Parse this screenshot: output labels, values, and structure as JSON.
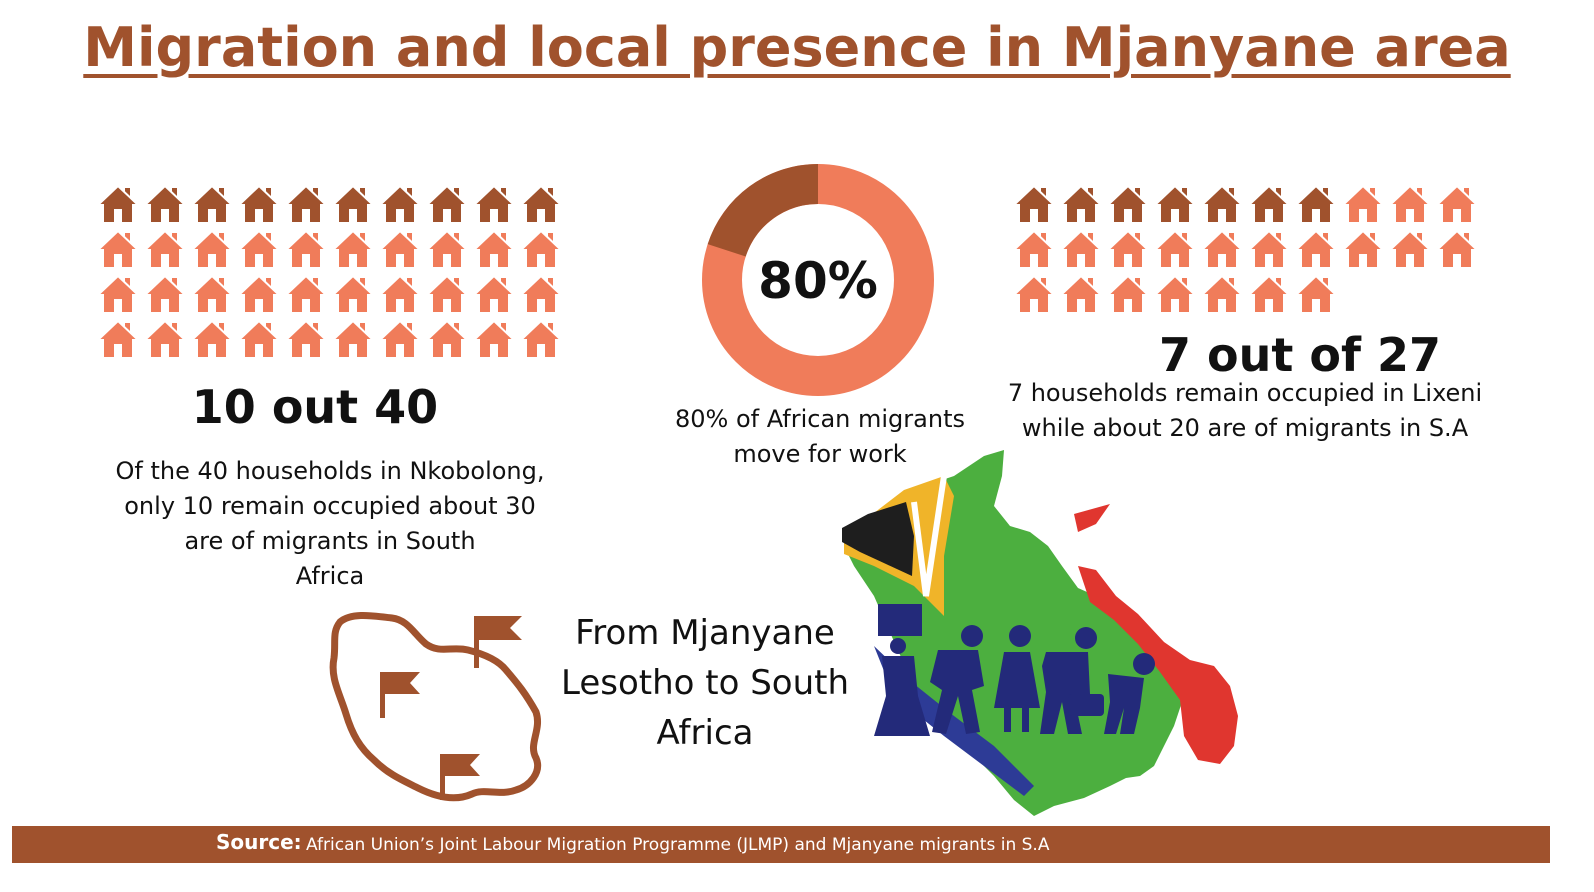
{
  "title": "Migration and local presence in Mjanyane area ",
  "colors": {
    "brown": "#a0522d",
    "orange": "#f07c5a",
    "black": "#111111"
  },
  "left": {
    "total_houses": 40,
    "highlighted_houses": 10,
    "stat": "10 out 40",
    "description_lines": [
      "Of the 40 households in Nkobolong,",
      "only 10 remain occupied about 30",
      "are of migrants in South",
      "Africa"
    ]
  },
  "center": {
    "percent_value": 0.8,
    "percent_label": "80%",
    "description_lines": [
      "80% of African migrants",
      "move for work"
    ]
  },
  "right": {
    "total_houses": 27,
    "highlighted_houses": 7,
    "stat": "7 out of 27",
    "description_lines": [
      "7 households remain occupied in Lixeni",
      "while about 20 are of migrants in S.A"
    ]
  },
  "from_lines": [
    "From Mjanyane",
    "Lesotho to South",
    "Africa"
  ],
  "icons": {
    "house": "house-icon",
    "flag": "flag-icon",
    "map_lesotho": "lesotho-map-icon",
    "map_sa": "south-africa-flag-map",
    "migrants": "walking-migrants-icon"
  },
  "footer": {
    "label": "Source:",
    "text": "African Union’s Joint Labour Migration Programme (JLMP) and Mjanyane migrants in S.A"
  }
}
